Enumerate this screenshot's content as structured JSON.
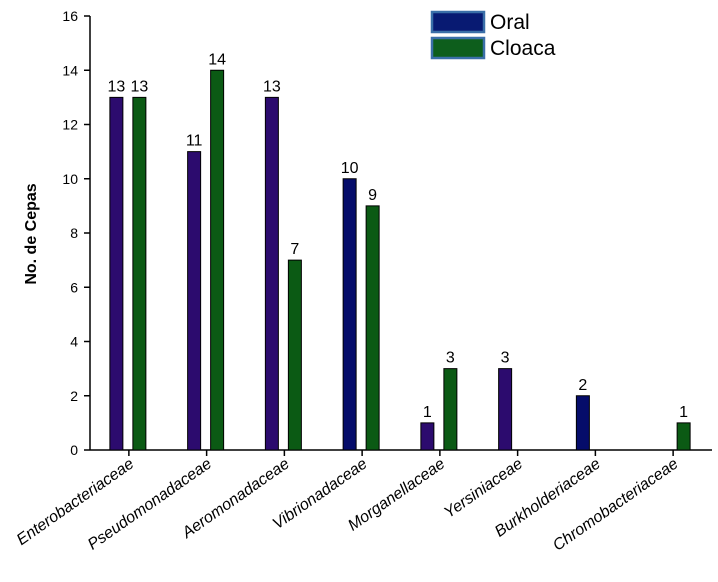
{
  "chart_data": {
    "type": "bar",
    "title": "",
    "xlabel": "",
    "ylabel": "No. de Cepas",
    "ylim": [
      0,
      16
    ],
    "yticks": [
      0,
      2,
      4,
      6,
      8,
      10,
      12,
      14,
      16
    ],
    "grid": false,
    "legend_position": "top-right",
    "categories": [
      "Enterobacteriaceae",
      "Pseudomonadaceae",
      "Aeromonadaceae",
      "Vibrionadaceae",
      "Morganellaceae",
      "Yersiniaceae",
      "Burkholderiaceae",
      "Chromobacteriaceae"
    ],
    "series": [
      {
        "name": "Oral",
        "values": [
          13,
          11,
          13,
          10,
          1,
          3,
          2,
          0
        ],
        "bar_colors": [
          "#2c0b6e",
          "#2c0b6e",
          "#2c0b6e",
          "#050c6a",
          "#2c0b6e",
          "#2c0b6e",
          "#050c6a",
          "#2c0b6e"
        ]
      },
      {
        "name": "Cloaca",
        "values": [
          13,
          14,
          7,
          9,
          3,
          0,
          0,
          1
        ],
        "bar_colors": [
          "#0b5a14",
          "#0b5a14",
          "#0b5a14",
          "#0b5a14",
          "#0b5a14",
          "#0b5a14",
          "#0b5a14",
          "#0b5a14"
        ]
      }
    ],
    "legend": [
      {
        "label": "Oral",
        "color": "#081a72"
      },
      {
        "label": "Cloaca",
        "color": "#0d5e1c"
      }
    ],
    "legend_border_color": "#3a6fa8",
    "bar_outline_color": "#000000"
  }
}
